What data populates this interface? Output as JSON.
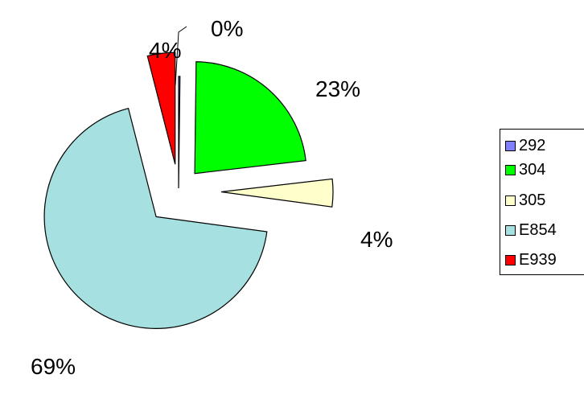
{
  "chart_data": {
    "type": "pie",
    "exploded": true,
    "categories": [
      "292",
      "304",
      "305",
      "E854",
      "E939"
    ],
    "values": [
      0.2,
      23,
      4,
      69,
      4
    ],
    "data_labels": [
      "0%",
      "23%",
      "4%",
      "69%",
      "4%"
    ],
    "colors": [
      "#8080ff",
      "#00ff00",
      "#ffffcc",
      "#a6e0e0",
      "#ff0000"
    ],
    "legend_position": "right",
    "title": ""
  }
}
